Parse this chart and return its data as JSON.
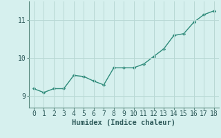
{
  "x": [
    0,
    1,
    2,
    3,
    4,
    5,
    6,
    7,
    8,
    9,
    10,
    11,
    12,
    13,
    14,
    15,
    16,
    17,
    18
  ],
  "y": [
    9.2,
    9.1,
    9.2,
    9.2,
    9.55,
    9.52,
    9.4,
    9.3,
    9.75,
    9.75,
    9.75,
    9.85,
    10.05,
    10.25,
    10.6,
    10.65,
    10.95,
    11.15,
    11.25
  ],
  "line_color": "#2e8b7a",
  "marker": "D",
  "marker_size": 2.2,
  "line_width": 1.0,
  "bg_color": "#d6f0ee",
  "grid_color": "#b8d8d4",
  "xlabel": "Humidex (Indice chaleur)",
  "xlabel_fontsize": 7.5,
  "tick_fontsize": 7,
  "xlim": [
    -0.5,
    18.5
  ],
  "ylim": [
    8.7,
    11.5
  ],
  "yticks": [
    9,
    10,
    11
  ],
  "xticks": [
    0,
    1,
    2,
    3,
    4,
    5,
    6,
    7,
    8,
    9,
    10,
    11,
    12,
    13,
    14,
    15,
    16,
    17,
    18
  ],
  "text_color": "#2e5a5a",
  "spine_color": "#5a8a80"
}
